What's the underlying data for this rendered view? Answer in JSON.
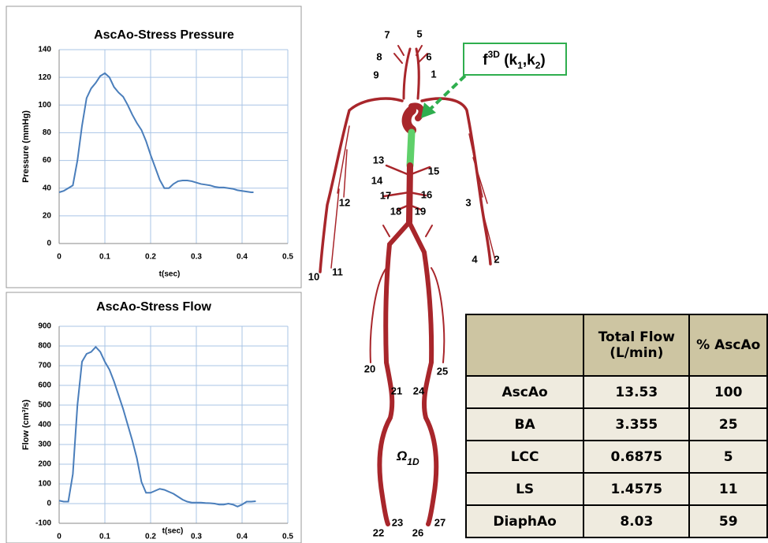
{
  "chart_data": [
    {
      "type": "line",
      "title": "AscAo-Stress Pressure",
      "x_label": "t(sec)",
      "y_label": "Pressure (mmHg)",
      "x": [
        0,
        0.01,
        0.02,
        0.03,
        0.04,
        0.05,
        0.06,
        0.07,
        0.08,
        0.09,
        0.1,
        0.11,
        0.12,
        0.13,
        0.14,
        0.15,
        0.16,
        0.17,
        0.18,
        0.19,
        0.2,
        0.21,
        0.22,
        0.23,
        0.24,
        0.25,
        0.26,
        0.27,
        0.28,
        0.29,
        0.3,
        0.31,
        0.32,
        0.33,
        0.34,
        0.35,
        0.36,
        0.37,
        0.38,
        0.39,
        0.4,
        0.41,
        0.42,
        0.425
      ],
      "series": [
        {
          "color": "#4a7ebb",
          "values": [
            37,
            38,
            40,
            42,
            60,
            85,
            105,
            112,
            116,
            121,
            123,
            120,
            113,
            109,
            106,
            100,
            93,
            87,
            82,
            74,
            64,
            55,
            46,
            40,
            40,
            43,
            45,
            45.5,
            45.5,
            45,
            44,
            43,
            42.5,
            42,
            41,
            40.5,
            40.5,
            40,
            39.5,
            38.5,
            38,
            37.5,
            37,
            37
          ]
        }
      ],
      "xlim": [
        0,
        0.5
      ],
      "xticks": [
        0,
        0.1,
        0.2,
        0.3,
        0.4,
        0.5
      ],
      "ylim": [
        0,
        140
      ],
      "yticks": [
        0,
        20,
        40,
        60,
        80,
        100,
        120,
        140
      ],
      "grid": true
    },
    {
      "type": "line",
      "title": "AscAo-Stress Flow",
      "x_label": "t(sec)",
      "y_label": "Flow (cm³/s)",
      "x": [
        0,
        0.01,
        0.02,
        0.03,
        0.04,
        0.05,
        0.06,
        0.07,
        0.08,
        0.09,
        0.1,
        0.11,
        0.12,
        0.13,
        0.14,
        0.15,
        0.16,
        0.17,
        0.18,
        0.19,
        0.2,
        0.21,
        0.22,
        0.23,
        0.24,
        0.25,
        0.26,
        0.27,
        0.28,
        0.29,
        0.3,
        0.31,
        0.32,
        0.33,
        0.34,
        0.35,
        0.36,
        0.37,
        0.38,
        0.39,
        0.4,
        0.41,
        0.42,
        0.43
      ],
      "series": [
        {
          "color": "#4a7ebb",
          "values": [
            15,
            10,
            10,
            150,
            500,
            720,
            760,
            770,
            795,
            770,
            720,
            680,
            620,
            550,
            480,
            400,
            320,
            230,
            110,
            55,
            55,
            65,
            75,
            70,
            60,
            50,
            35,
            20,
            10,
            5,
            5,
            5,
            3,
            2,
            0,
            -5,
            -5,
            0,
            -5,
            -15,
            -5,
            10,
            10,
            12
          ]
        }
      ],
      "xlim": [
        0,
        0.5
      ],
      "xticks": [
        0,
        0.1,
        0.2,
        0.3,
        0.4,
        0.5
      ],
      "ylim": [
        -100,
        900
      ],
      "yticks": [
        -100,
        0,
        100,
        200,
        300,
        400,
        500,
        600,
        700,
        800,
        900
      ],
      "grid": true
    }
  ],
  "diagram": {
    "vessel_labels": [
      7,
      5,
      8,
      6,
      9,
      1,
      13,
      15,
      14,
      17,
      16,
      12,
      3,
      18,
      19,
      4,
      2,
      10,
      11,
      20,
      25,
      21,
      24,
      23,
      27,
      22,
      26
    ],
    "coupling_label": [
      "f",
      "3D",
      " (k",
      "1",
      ",k",
      "2",
      ")"
    ],
    "domain_label": [
      "Ω",
      "1D"
    ]
  },
  "table": {
    "header": [
      "Total Flow (L/min)",
      "% AscAo"
    ],
    "rows": [
      [
        "AscAo",
        13.53,
        100
      ],
      [
        "BA",
        3.355,
        25
      ],
      [
        "LCC",
        0.6875,
        5
      ],
      [
        "LS",
        1.4575,
        11
      ],
      [
        "DiaphAo",
        8.03,
        59
      ]
    ]
  }
}
